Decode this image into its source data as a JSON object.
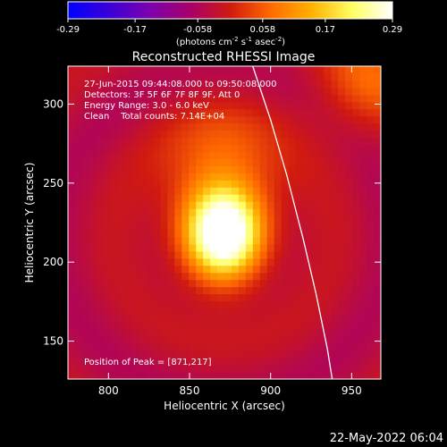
{
  "chart_data": {
    "type": "heatmap",
    "title": "Reconstructed RHESSI Image",
    "xlabel": "Heliocentric X (arcsec)",
    "ylabel": "Heliocentric Y (arcsec)",
    "xlim": [
      775,
      968
    ],
    "ylim": [
      126,
      324
    ],
    "x_ticks": [
      800,
      850,
      900,
      950
    ],
    "y_ticks": [
      150,
      200,
      250,
      300
    ],
    "x_tick_labels": [
      "800",
      "850",
      "900",
      "950"
    ],
    "y_tick_labels": [
      "150",
      "200",
      "250",
      "300"
    ],
    "colorbar": {
      "range": [
        -0.29,
        0.29
      ],
      "ticks": [
        -0.29,
        -0.17,
        -0.058,
        0.058,
        0.17,
        0.29
      ],
      "tick_labels": [
        "-0.29",
        "-0.17",
        "-0.058",
        "0.058",
        "0.17",
        "0.29"
      ],
      "units_label": "(photons cm-2 s-1 asec-2)",
      "colormap": [
        "#0000ff",
        "#3a00d8",
        "#7a00b0",
        "#a8006a",
        "#d01a10",
        "#ff6a00",
        "#ffb000",
        "#ffff60",
        "#ffffff"
      ]
    },
    "annotations": [
      "27-Jun-2015 09:44:08.000 to 09:50:08.000",
      "Detectors: 3F 5F 6F 7F 8F 9F, Att 0",
      "Energy Range: 3.0 - 6.0 keV",
      "Clean    Total counts: 7.14E+04"
    ],
    "peak_label": "Position of Peak = [871,217]",
    "peak": [
      871,
      217
    ],
    "limb_curve": [
      [
        889,
        324
      ],
      [
        900,
        290
      ],
      [
        910,
        255
      ],
      [
        920,
        215
      ],
      [
        928,
        180
      ],
      [
        935,
        145
      ],
      [
        938,
        126
      ]
    ],
    "sources": [
      {
        "x": 871,
        "y": 217,
        "sigma_x": 16,
        "sigma_y": 20,
        "value": 0.29
      },
      {
        "x": 870,
        "y": 242,
        "sigma_x": 24,
        "sigma_y": 34,
        "value": 0.14
      },
      {
        "x": 960,
        "y": 315,
        "sigma_x": 22,
        "sigma_y": 22,
        "value": 0.09
      }
    ]
  },
  "footer": {
    "timestamp": "22-May-2022 06:04"
  }
}
